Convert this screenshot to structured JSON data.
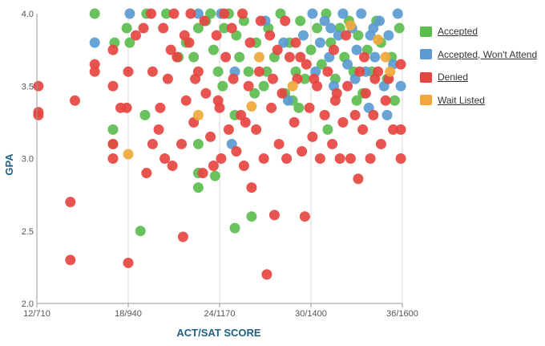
{
  "chart_data": {
    "type": "scatter",
    "xlabel": "ACT/SAT SCORE",
    "ylabel": "GPA",
    "xlim": [
      12,
      36
    ],
    "ylim": [
      2.0,
      4.0
    ],
    "x_ticks": [
      {
        "value": 12,
        "label": "12/710"
      },
      {
        "value": 18,
        "label": "18/940"
      },
      {
        "value": 24,
        "label": "24/1170"
      },
      {
        "value": 30,
        "label": "30/1400"
      },
      {
        "value": 36,
        "label": "36/1600"
      }
    ],
    "y_ticks": [
      {
        "value": 2.0,
        "label": "2.0"
      },
      {
        "value": 2.5,
        "label": "2.5"
      },
      {
        "value": 3.0,
        "label": "3.0"
      },
      {
        "value": 3.5,
        "label": "3.5"
      },
      {
        "value": 4.0,
        "label": "4.0"
      }
    ],
    "legend_position": "right",
    "grid": {
      "vertical": true,
      "horizontal": false
    },
    "series": [
      {
        "name": "Accepted",
        "color": "#5cbd4f",
        "points": [
          [
            15.8,
            4.0
          ],
          [
            17.1,
            3.8
          ],
          [
            17.9,
            3.9
          ],
          [
            18.1,
            3.8
          ],
          [
            19.2,
            4.0
          ],
          [
            20.5,
            4.0
          ],
          [
            21.3,
            3.7
          ],
          [
            21.8,
            3.8
          ],
          [
            22.3,
            3.7
          ],
          [
            22.6,
            3.9
          ],
          [
            23.1,
            3.95
          ],
          [
            23.4,
            4.0
          ],
          [
            23.6,
            3.75
          ],
          [
            23.9,
            3.6
          ],
          [
            24.3,
            3.9
          ],
          [
            24.6,
            4.0
          ],
          [
            25.1,
            3.85
          ],
          [
            25.3,
            3.7
          ],
          [
            25.6,
            3.95
          ],
          [
            25.9,
            3.6
          ],
          [
            26.4,
            3.8
          ],
          [
            26.9,
            3.5
          ],
          [
            27.2,
            3.9
          ],
          [
            27.6,
            3.7
          ],
          [
            28.0,
            4.0
          ],
          [
            28.3,
            3.45
          ],
          [
            28.6,
            3.8
          ],
          [
            29.0,
            3.6
          ],
          [
            29.3,
            3.95
          ],
          [
            29.6,
            3.55
          ],
          [
            30.0,
            3.75
          ],
          [
            30.4,
            3.9
          ],
          [
            30.7,
            3.65
          ],
          [
            31.0,
            4.0
          ],
          [
            31.3,
            3.8
          ],
          [
            31.6,
            3.55
          ],
          [
            31.9,
            3.9
          ],
          [
            32.2,
            3.7
          ],
          [
            32.5,
            3.95
          ],
          [
            32.8,
            3.6
          ],
          [
            33.1,
            3.85
          ],
          [
            33.4,
            3.45
          ],
          [
            33.7,
            3.75
          ],
          [
            34.0,
            3.6
          ],
          [
            34.3,
            3.95
          ],
          [
            34.6,
            3.8
          ],
          [
            35.0,
            3.55
          ],
          [
            35.3,
            3.7
          ],
          [
            35.5,
            3.4
          ],
          [
            35.8,
            3.9
          ],
          [
            25.0,
            3.3
          ],
          [
            29.2,
            3.35
          ],
          [
            31.1,
            3.2
          ],
          [
            33.0,
            3.4
          ],
          [
            26.3,
            3.45
          ],
          [
            28.8,
            3.4
          ],
          [
            17.0,
            3.2
          ],
          [
            17.0,
            3.1
          ],
          [
            19.1,
            3.3
          ],
          [
            22.6,
            3.1
          ],
          [
            22.6,
            2.9
          ],
          [
            22.6,
            2.8
          ],
          [
            23.7,
            2.88
          ],
          [
            25.0,
            2.52
          ],
          [
            26.1,
            2.6
          ],
          [
            18.8,
            2.5
          ],
          [
            24.2,
            3.5
          ],
          [
            27.1,
            3.6
          ]
        ]
      },
      {
        "name": "Accepted, Won't Attend",
        "color": "#5b9bd1",
        "points": [
          [
            15.8,
            3.8
          ],
          [
            18.1,
            4.0
          ],
          [
            22.6,
            4.0
          ],
          [
            24.1,
            4.0
          ],
          [
            25.0,
            3.6
          ],
          [
            27.0,
            3.95
          ],
          [
            28.2,
            3.8
          ],
          [
            29.5,
            3.85
          ],
          [
            30.1,
            4.0
          ],
          [
            30.3,
            3.6
          ],
          [
            30.6,
            3.8
          ],
          [
            30.9,
            3.95
          ],
          [
            31.2,
            3.7
          ],
          [
            31.5,
            3.5
          ],
          [
            31.8,
            3.85
          ],
          [
            32.1,
            4.0
          ],
          [
            32.4,
            3.65
          ],
          [
            32.7,
            3.9
          ],
          [
            33.0,
            3.75
          ],
          [
            33.3,
            4.0
          ],
          [
            33.6,
            3.6
          ],
          [
            33.9,
            3.85
          ],
          [
            34.2,
            3.7
          ],
          [
            34.5,
            3.95
          ],
          [
            34.8,
            3.5
          ],
          [
            35.1,
            3.85
          ],
          [
            35.4,
            3.65
          ],
          [
            35.7,
            4.0
          ],
          [
            35.9,
            3.5
          ],
          [
            33.8,
            3.35
          ],
          [
            35.0,
            3.3
          ],
          [
            24.8,
            3.1
          ],
          [
            28.5,
            3.4
          ],
          [
            31.3,
            3.9
          ],
          [
            32.9,
            3.55
          ],
          [
            34.1,
            3.9
          ]
        ]
      },
      {
        "name": "Denied",
        "color": "#e64541",
        "points": [
          [
            12.1,
            3.5
          ],
          [
            12.1,
            3.32
          ],
          [
            12.1,
            3.3
          ],
          [
            14.5,
            3.4
          ],
          [
            14.2,
            2.7
          ],
          [
            14.2,
            2.3
          ],
          [
            15.8,
            3.65
          ],
          [
            15.8,
            3.6
          ],
          [
            17.0,
            3.0
          ],
          [
            17.0,
            3.1
          ],
          [
            17.0,
            3.5
          ],
          [
            17.0,
            3.75
          ],
          [
            17.5,
            3.35
          ],
          [
            17.9,
            3.35
          ],
          [
            18.0,
            3.6
          ],
          [
            18.0,
            2.28
          ],
          [
            18.5,
            3.85
          ],
          [
            19.0,
            3.9
          ],
          [
            19.2,
            2.9
          ],
          [
            19.6,
            3.1
          ],
          [
            19.6,
            3.6
          ],
          [
            20.0,
            3.2
          ],
          [
            20.1,
            3.35
          ],
          [
            20.4,
            3.0
          ],
          [
            20.6,
            3.55
          ],
          [
            20.9,
            2.95
          ],
          [
            21.2,
            3.7
          ],
          [
            21.5,
            3.1
          ],
          [
            21.6,
            2.46
          ],
          [
            21.8,
            3.4
          ],
          [
            22.0,
            3.8
          ],
          [
            22.3,
            3.25
          ],
          [
            22.6,
            3.6
          ],
          [
            22.9,
            2.9
          ],
          [
            23.1,
            3.45
          ],
          [
            23.4,
            3.15
          ],
          [
            23.6,
            2.95
          ],
          [
            23.9,
            3.4
          ],
          [
            24.1,
            3.0
          ],
          [
            24.4,
            3.7
          ],
          [
            24.6,
            3.2
          ],
          [
            24.9,
            3.55
          ],
          [
            25.1,
            3.05
          ],
          [
            25.4,
            3.3
          ],
          [
            25.6,
            2.95
          ],
          [
            25.9,
            3.5
          ],
          [
            26.1,
            2.8
          ],
          [
            26.4,
            3.2
          ],
          [
            26.6,
            3.6
          ],
          [
            26.9,
            3.0
          ],
          [
            27.1,
            2.2
          ],
          [
            27.4,
            3.35
          ],
          [
            27.6,
            2.61
          ],
          [
            27.9,
            3.1
          ],
          [
            28.1,
            3.45
          ],
          [
            28.4,
            3.0
          ],
          [
            28.6,
            3.7
          ],
          [
            28.9,
            3.25
          ],
          [
            29.1,
            3.55
          ],
          [
            29.4,
            3.05
          ],
          [
            29.6,
            2.6
          ],
          [
            29.9,
            3.35
          ],
          [
            30.1,
            3.15
          ],
          [
            30.4,
            3.5
          ],
          [
            30.6,
            3.0
          ],
          [
            30.9,
            3.3
          ],
          [
            31.1,
            3.6
          ],
          [
            31.4,
            3.1
          ],
          [
            31.6,
            3.4
          ],
          [
            31.9,
            3.0
          ],
          [
            32.1,
            3.25
          ],
          [
            32.4,
            3.5
          ],
          [
            32.6,
            3.0
          ],
          [
            32.9,
            3.3
          ],
          [
            33.1,
            2.86
          ],
          [
            33.4,
            3.2
          ],
          [
            33.6,
            3.45
          ],
          [
            33.9,
            3.0
          ],
          [
            34.1,
            3.3
          ],
          [
            34.4,
            3.6
          ],
          [
            34.6,
            3.1
          ],
          [
            34.9,
            3.4
          ],
          [
            35.1,
            3.55
          ],
          [
            35.4,
            3.2
          ],
          [
            35.9,
            3.0
          ],
          [
            35.9,
            3.2
          ],
          [
            35.9,
            3.65
          ],
          [
            19.5,
            4.0
          ],
          [
            20.3,
            3.9
          ],
          [
            21.0,
            4.0
          ],
          [
            21.7,
            3.85
          ],
          [
            22.1,
            4.0
          ],
          [
            23.0,
            3.95
          ],
          [
            23.8,
            3.85
          ],
          [
            24.3,
            4.0
          ],
          [
            24.8,
            3.9
          ],
          [
            25.5,
            4.0
          ],
          [
            26.0,
            3.8
          ],
          [
            26.7,
            3.95
          ],
          [
            27.3,
            3.85
          ],
          [
            27.8,
            3.75
          ],
          [
            28.3,
            3.95
          ],
          [
            29.0,
            3.8
          ],
          [
            29.7,
            3.65
          ],
          [
            30.2,
            3.55
          ],
          [
            31.5,
            3.75
          ],
          [
            32.3,
            3.85
          ],
          [
            33.5,
            3.7
          ],
          [
            34.2,
            3.55
          ],
          [
            20.8,
            3.75
          ],
          [
            22.4,
            3.55
          ],
          [
            24.0,
            3.35
          ],
          [
            25.7,
            3.25
          ],
          [
            27.5,
            3.55
          ],
          [
            29.3,
            3.7
          ],
          [
            31.7,
            3.45
          ],
          [
            33.2,
            3.6
          ]
        ]
      },
      {
        "name": "Wait Listed",
        "color": "#f0a83a",
        "points": [
          [
            18.0,
            3.03
          ],
          [
            22.6,
            3.3
          ],
          [
            26.1,
            3.36
          ],
          [
            26.6,
            3.7
          ],
          [
            28.8,
            3.5
          ],
          [
            32.6,
            3.92
          ],
          [
            34.4,
            3.82
          ],
          [
            34.9,
            3.7
          ],
          [
            35.2,
            3.6
          ]
        ]
      }
    ]
  }
}
